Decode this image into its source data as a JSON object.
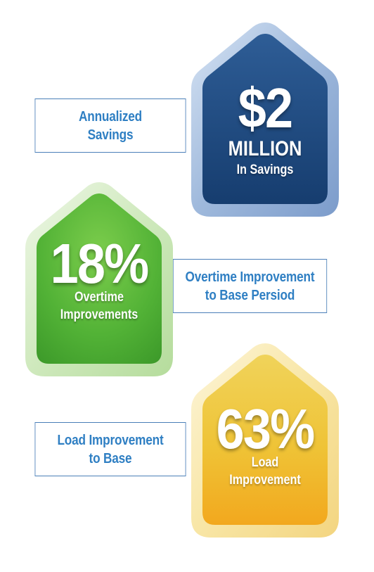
{
  "colors": {
    "accent_text": "#2f7fc3",
    "callout_border": "#4a7fb8",
    "blue_badge": "#1f4d86",
    "green_badge": "#4fb63f",
    "gold_badge": "#f3c22e"
  },
  "metrics": [
    {
      "value": "$2",
      "unit": "MILLION",
      "caption": "In Savings",
      "callout": [
        "Annualized",
        "Savings"
      ]
    },
    {
      "value": "18%",
      "caption": [
        "Overtime",
        "Improvements"
      ],
      "callout": [
        "Overtime Improvement",
        "to Base Persiod"
      ]
    },
    {
      "value": "63%",
      "caption": [
        "Load",
        "Improvement"
      ],
      "callout": [
        "Load Improvement",
        "to Base"
      ]
    }
  ]
}
